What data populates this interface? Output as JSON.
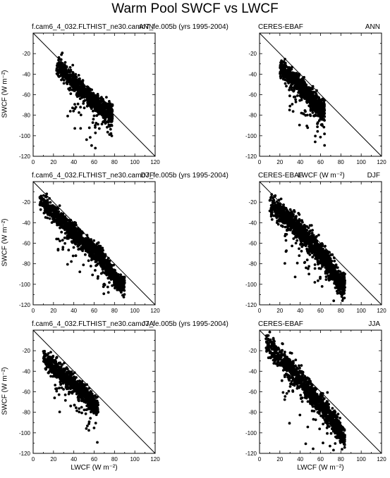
{
  "title": "Warm Pool SWCF vs LWCF",
  "chart_data": [
    {
      "id": "model-ann",
      "type": "scatter",
      "label_left": "f.cam6_4_032.FLTHIST_ne30.camo7_fe.005b (yrs 1995-2004)",
      "label_right": "ANN",
      "xlabel": "",
      "ylabel": "SWCF (W m⁻²)",
      "xlim": [
        0,
        120
      ],
      "ylim": [
        -120,
        0
      ],
      "xticks": [
        "0",
        "20",
        "40",
        "60",
        "80",
        "100",
        "120"
      ],
      "yticks": [
        "-20",
        "-40",
        "-60",
        "-80",
        "-100",
        "-120"
      ],
      "reference_line": "y = -x",
      "cluster": {
        "x_range": [
          23,
          78
        ],
        "center_y_at_x": [
          [
            25,
            -33
          ],
          [
            40,
            -47
          ],
          [
            55,
            -62
          ],
          [
            70,
            -76
          ]
        ],
        "spread": 8,
        "n": 900,
        "outliers_low": 60,
        "seed": 11
      }
    },
    {
      "id": "obs-ann",
      "type": "scatter",
      "label_left": "CERES-EBAF",
      "label_right": "ANN",
      "xlabel": "",
      "ylabel": "",
      "xlim": [
        0,
        120
      ],
      "ylim": [
        -120,
        0
      ],
      "xticks": [
        "0",
        "20",
        "40",
        "60",
        "80",
        "100",
        "120"
      ],
      "yticks": [
        "-20",
        "-40",
        "-60",
        "-80",
        "-100",
        "-120"
      ],
      "reference_line": "y = -x",
      "cluster": {
        "x_range": [
          20,
          64
        ],
        "center_y_at_x": [
          [
            22,
            -35
          ],
          [
            35,
            -45
          ],
          [
            48,
            -60
          ],
          [
            60,
            -75
          ]
        ],
        "spread": 7,
        "n": 1000,
        "outliers_low": 80,
        "seed": 23
      }
    },
    {
      "id": "model-djf",
      "type": "scatter",
      "label_left": "f.cam6_4_032.FLTHIST_ne30.camo7_fe.005b (yrs 1995-2004)",
      "label_right": "DJF",
      "xlabel": "",
      "ylabel": "SWCF (W m⁻²)",
      "xlim": [
        0,
        120
      ],
      "ylim": [
        -120,
        0
      ],
      "xticks": [
        "0",
        "20",
        "40",
        "60",
        "80",
        "100",
        "120"
      ],
      "yticks": [
        "-20",
        "-40",
        "-60",
        "-80",
        "-100",
        "-120"
      ],
      "reference_line": "y = -x",
      "cluster": {
        "x_range": [
          6,
          90
        ],
        "center_y_at_x": [
          [
            8,
            -20
          ],
          [
            25,
            -35
          ],
          [
            45,
            -55
          ],
          [
            65,
            -72
          ],
          [
            85,
            -100
          ]
        ],
        "spread": 7,
        "n": 1300,
        "outliers_low": 70,
        "seed": 37
      }
    },
    {
      "id": "obs-djf",
      "type": "scatter",
      "label_left": "CERES-EBAF",
      "label_right": "DJF",
      "xlabel": "LWCF (W m⁻²)",
      "ylabel": "",
      "xlim": [
        0,
        120
      ],
      "ylim": [
        -120,
        0
      ],
      "xticks": [
        "0",
        "20",
        "40",
        "60",
        "80",
        "100",
        "120"
      ],
      "yticks": [
        "-20",
        "-40",
        "-60",
        "-80",
        "-100",
        "-120"
      ],
      "reference_line": "y = -x",
      "cluster": {
        "x_range": [
          10,
          84
        ],
        "center_y_at_x": [
          [
            12,
            -24
          ],
          [
            30,
            -38
          ],
          [
            50,
            -58
          ],
          [
            68,
            -80
          ],
          [
            80,
            -100
          ]
        ],
        "spread": 9,
        "n": 1300,
        "outliers_low": 60,
        "seed": 53
      }
    },
    {
      "id": "model-jja",
      "type": "scatter",
      "label_left": "f.cam6_4_032.FLTHIST_ne30.camo7_fe.005b (yrs 1995-2004)",
      "label_right": "JJA",
      "xlabel": "LWCF (W m⁻²)",
      "ylabel": "SWCF (W m⁻²)",
      "xlim": [
        0,
        120
      ],
      "ylim": [
        -120,
        0
      ],
      "xticks": [
        "0",
        "20",
        "40",
        "60",
        "80",
        "100",
        "120"
      ],
      "yticks": [
        "-20",
        "-40",
        "-60",
        "-80",
        "-100",
        "-120"
      ],
      "reference_line": "y = -x",
      "cluster": {
        "x_range": [
          10,
          64
        ],
        "center_y_at_x": [
          [
            12,
            -28
          ],
          [
            25,
            -40
          ],
          [
            40,
            -52
          ],
          [
            55,
            -66
          ],
          [
            62,
            -75
          ]
        ],
        "spread": 7,
        "n": 900,
        "outliers_low": 60,
        "seed": 71
      }
    },
    {
      "id": "obs-jja",
      "type": "scatter",
      "label_left": "CERES-EBAF",
      "label_right": "JJA",
      "xlabel": "LWCF (W m⁻²)",
      "ylabel": "",
      "xlim": [
        0,
        120
      ],
      "ylim": [
        -120,
        0
      ],
      "xticks": [
        "0",
        "20",
        "40",
        "60",
        "80",
        "100",
        "120"
      ],
      "yticks": [
        "-20",
        "-40",
        "-60",
        "-80",
        "-100",
        "-120"
      ],
      "reference_line": "y = -x",
      "cluster": {
        "x_range": [
          6,
          84
        ],
        "center_y_at_x": [
          [
            8,
            -14
          ],
          [
            25,
            -32
          ],
          [
            45,
            -55
          ],
          [
            65,
            -78
          ],
          [
            82,
            -104
          ]
        ],
        "spread": 9,
        "n": 1100,
        "outliers_low": 40,
        "seed": 89
      }
    }
  ]
}
